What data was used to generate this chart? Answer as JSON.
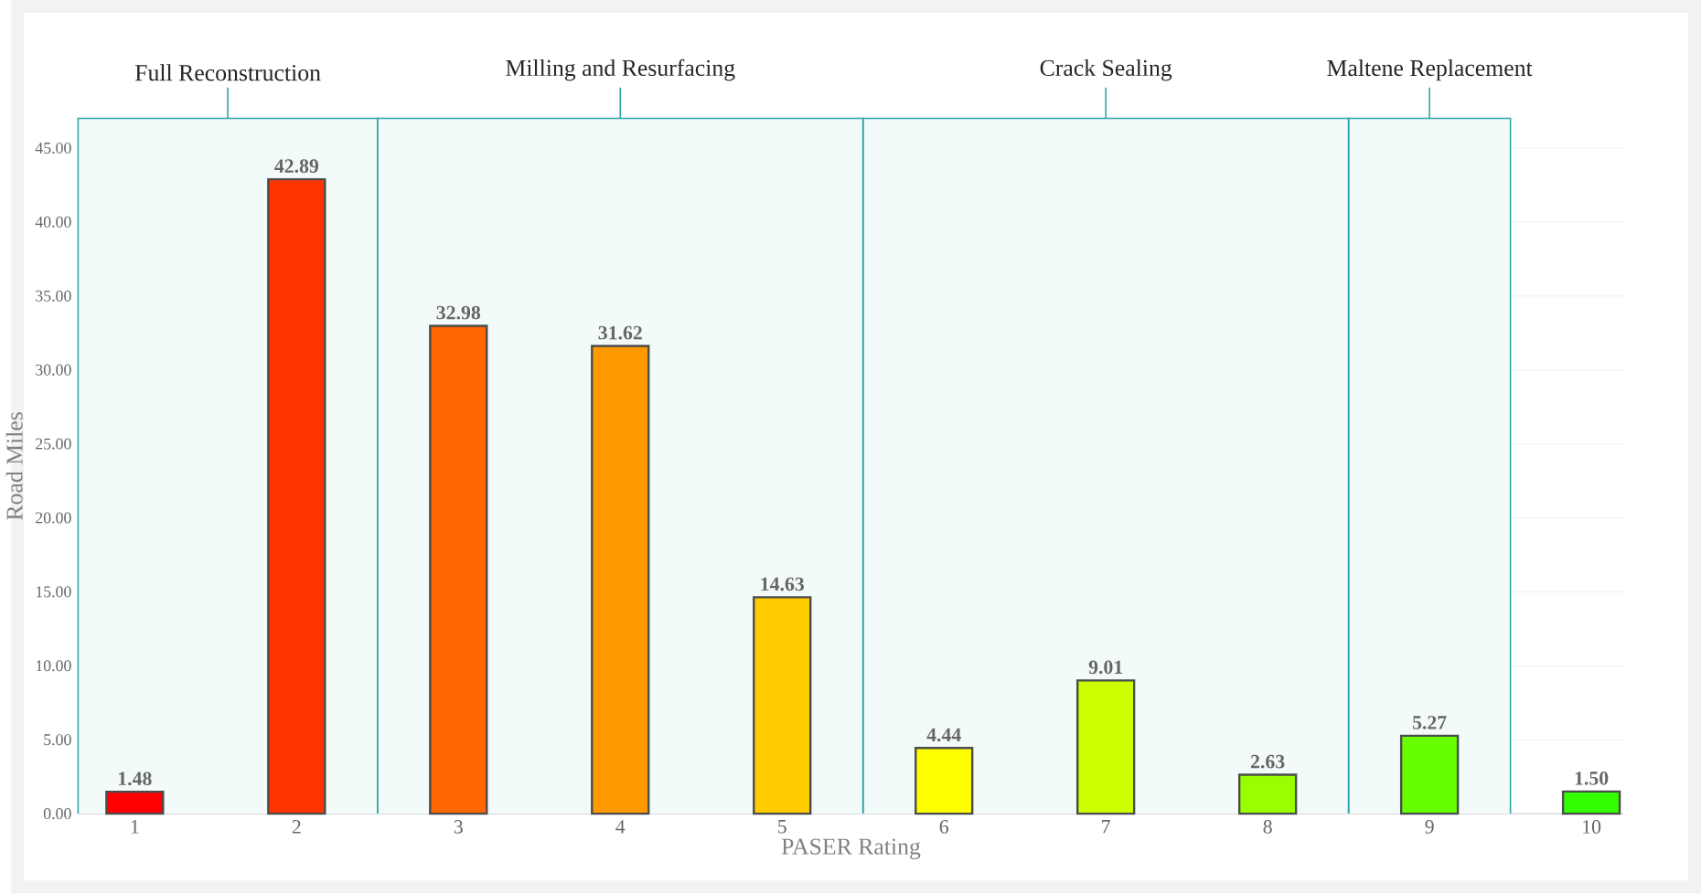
{
  "chart_data": {
    "type": "bar",
    "xlabel": "PASER Rating",
    "ylabel": "Road Miles",
    "x": [
      1,
      2,
      3,
      4,
      5,
      6,
      7,
      8,
      9,
      10
    ],
    "values": [
      1.48,
      42.89,
      32.98,
      31.62,
      14.63,
      4.44,
      9.01,
      2.63,
      5.27,
      1.5
    ],
    "value_labels": [
      "1.48",
      "42.89",
      "32.98",
      "31.62",
      "14.63",
      "4.44",
      "9.01",
      "2.63",
      "5.27",
      "1.50"
    ],
    "colors": [
      "#ff0000",
      "#ff3300",
      "#ff6600",
      "#ff9900",
      "#ffcc00",
      "#ffff00",
      "#ccff00",
      "#99ff00",
      "#66ff00",
      "#33ff00"
    ],
    "xlim": [
      0.65,
      10.2
    ],
    "xticks": [
      1,
      2,
      3,
      4,
      5,
      6,
      7,
      8,
      9,
      10
    ],
    "ylim": [
      0,
      47
    ],
    "yticks": [
      {
        "value": 0,
        "label": "0.00"
      },
      {
        "value": 5,
        "label": "5.00"
      },
      {
        "value": 10,
        "label": "10.00"
      },
      {
        "value": 15,
        "label": "15.00"
      },
      {
        "value": 20,
        "label": "20.00"
      },
      {
        "value": 25,
        "label": "25.00"
      },
      {
        "value": 30,
        "label": "30.00"
      },
      {
        "value": 35,
        "label": "35.00"
      },
      {
        "value": 40,
        "label": "40.00"
      },
      {
        "value": 45,
        "label": "45.00"
      }
    ],
    "grid": "y",
    "bands": [
      {
        "axis": "x",
        "from": 0.65,
        "to": 2.5,
        "label": "Full Reconstruction",
        "color": "#f3fafa"
      },
      {
        "axis": "x",
        "from": 2.5,
        "to": 5.5,
        "label": "Milling and Resurfacing",
        "color": "#f3fafa"
      },
      {
        "axis": "x",
        "from": 5.5,
        "to": 8.5,
        "label": "Crack Sealing",
        "color": "#f3fafa"
      },
      {
        "axis": "x",
        "from": 8.5,
        "to": 9.5,
        "label": "Maltene Replacement",
        "color": "#f3fafa"
      }
    ]
  }
}
